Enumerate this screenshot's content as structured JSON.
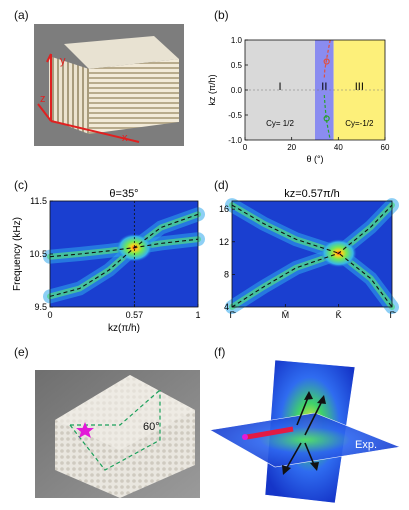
{
  "figure": {
    "panels": {
      "a": {
        "label": "(a)",
        "axes": {
          "x": "x",
          "y": "y",
          "z": "z"
        }
      },
      "b": {
        "label": "(b)"
      },
      "c": {
        "label": "(c)"
      },
      "d": {
        "label": "(d)"
      },
      "e": {
        "label": "(e)",
        "angle": "60°",
        "marker": "star"
      },
      "f": {
        "label": "(f)",
        "tag": "Exp."
      }
    }
  },
  "chart_data": [
    {
      "panel": "b",
      "type": "line",
      "xlabel": "θ (°)",
      "ylabel": "kz (π/h)",
      "xlim": [
        0,
        60
      ],
      "ylim": [
        -1.0,
        1.0
      ],
      "xticks": [
        0,
        20,
        40,
        60
      ],
      "yticks": [
        -1.0,
        -0.5,
        0.0,
        0.5,
        1.0
      ],
      "regions": [
        {
          "name": "I",
          "x_range": [
            0,
            30
          ],
          "color": "#d9d9d9",
          "annotation": "Cy= 1/2"
        },
        {
          "name": "II",
          "x_range": [
            30,
            38
          ],
          "color": "#8a8cf0",
          "annotation": ""
        },
        {
          "name": "III",
          "x_range": [
            38,
            60
          ],
          "color": "#fdf07a",
          "annotation": "Cy=-1/2"
        }
      ],
      "series": [
        {
          "color": "#e05040",
          "points": [
            [
              36.5,
              1.0
            ],
            [
              35.5,
              0.75
            ],
            [
              34.8,
              0.57
            ],
            [
              34.2,
              0.4
            ],
            [
              34.0,
              0.25
            ]
          ]
        },
        {
          "color": "#2aa030",
          "points": [
            [
              34.0,
              -0.1
            ],
            [
              34.2,
              -0.25
            ],
            [
              34.8,
              -0.57
            ],
            [
              35.5,
              -0.75
            ],
            [
              36.5,
              -1.0
            ]
          ]
        }
      ],
      "markers": [
        {
          "x": 35,
          "y": 0.57,
          "color": "#e05040"
        },
        {
          "x": 35,
          "y": -0.57,
          "color": "#2aa030"
        }
      ]
    },
    {
      "panel": "c",
      "type": "heatmap",
      "title": "θ=35°",
      "xlabel": "kz(π/h)",
      "ylabel": "Frequency (kHz)",
      "xlim": [
        0,
        1
      ],
      "ylim": [
        9.5,
        11.5
      ],
      "xticks": [
        0,
        0.57,
        1
      ],
      "yticks": [
        9.5,
        10.5,
        11.5
      ],
      "xtick_labels": [
        "0",
        "0.57",
        "1"
      ],
      "ytick_labels": [
        "9.5",
        "10.5",
        "11.5"
      ],
      "dispersion_curves": [
        [
          [
            0,
            10.45
          ],
          [
            0.2,
            10.5
          ],
          [
            0.4,
            10.56
          ],
          [
            0.57,
            10.62
          ],
          [
            0.75,
            10.7
          ],
          [
            1.0,
            10.78
          ]
        ],
        [
          [
            0,
            9.7
          ],
          [
            0.2,
            9.85
          ],
          [
            0.4,
            10.2
          ],
          [
            0.57,
            10.62
          ],
          [
            0.75,
            11.0
          ],
          [
            1.0,
            11.25
          ]
        ]
      ],
      "crossing": {
        "x": 0.57,
        "y": 10.62
      }
    },
    {
      "panel": "d",
      "type": "heatmap",
      "title": "kz=0.57π/h",
      "xlabel": "",
      "ylabel": "",
      "xlim": [
        0,
        3
      ],
      "ylim": [
        4,
        17
      ],
      "xtick_labels": [
        "Γ̄",
        "M̄",
        "K̄",
        "Γ̄"
      ],
      "yticks": [
        4,
        8,
        12,
        16
      ],
      "ytick_labels": [
        "4",
        "8",
        "12",
        "16"
      ],
      "dispersion_curves": [
        [
          [
            0,
            16.5
          ],
          [
            0.6,
            14.2
          ],
          [
            1.2,
            12.3
          ],
          [
            2.0,
            10.6
          ],
          [
            2.6,
            7.5
          ],
          [
            3.0,
            4.0
          ]
        ],
        [
          [
            0,
            4.0
          ],
          [
            0.6,
            6.5
          ],
          [
            1.2,
            8.8
          ],
          [
            2.0,
            10.6
          ],
          [
            2.6,
            13.8
          ],
          [
            3.0,
            16.5
          ]
        ]
      ],
      "crossing": {
        "x": 2.0,
        "y": 10.6
      }
    }
  ]
}
